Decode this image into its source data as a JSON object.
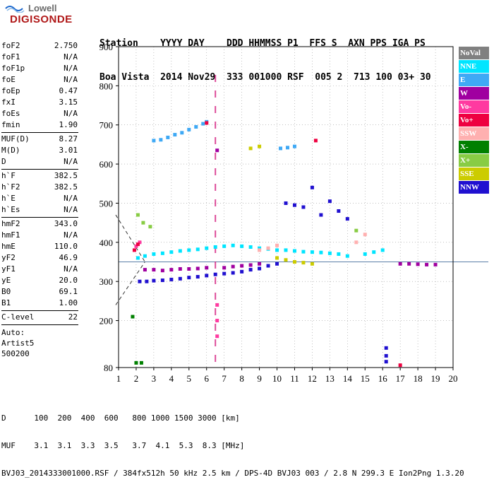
{
  "logo": {
    "line1": "Lowell",
    "line2": "DIGISONDE"
  },
  "header": {
    "labels": "Station    YYYY DAY    DDD HHMMSS P1  FFS S  AXN PPS IGA PS",
    "values": "Boa Vista  2014 Nov29  333 001000 RSF  005 2  713 100 03+ 30"
  },
  "parameters": [
    {
      "name": "foF2",
      "value": "2.750"
    },
    {
      "name": "foF1",
      "value": "N/A"
    },
    {
      "name": "foF1p",
      "value": "N/A"
    },
    {
      "name": "foE",
      "value": "N/A"
    },
    {
      "name": "foEp",
      "value": "0.47"
    },
    {
      "name": "fxI",
      "value": "3.15"
    },
    {
      "name": "foEs",
      "value": "N/A"
    },
    {
      "name": "fmin",
      "value": "1.90"
    },
    {
      "name": "MUF(D)",
      "value": "8.27"
    },
    {
      "name": "M(D)",
      "value": "3.01"
    },
    {
      "name": "D",
      "value": "N/A"
    },
    {
      "name": "h`F",
      "value": "382.5"
    },
    {
      "name": "h`F2",
      "value": "382.5"
    },
    {
      "name": "h`E",
      "value": "N/A"
    },
    {
      "name": "h`Es",
      "value": "N/A"
    },
    {
      "name": "hmF2",
      "value": "343.0"
    },
    {
      "name": "hmF1",
      "value": "N/A"
    },
    {
      "name": "hmE",
      "value": "110.0"
    },
    {
      "name": "yF2",
      "value": "46.9"
    },
    {
      "name": "yF1",
      "value": "N/A"
    },
    {
      "name": "yE",
      "value": "20.0"
    },
    {
      "name": "B0",
      "value": "69.1"
    },
    {
      "name": "B1",
      "value": "1.00"
    },
    {
      "name": "C-level",
      "value": "22"
    }
  ],
  "autoscaling": {
    "line1": "Auto:",
    "line2": "Artist5",
    "line3": "500200"
  },
  "legend": [
    {
      "label": "NoVal",
      "color": "#808080"
    },
    {
      "label": "NNE",
      "color": "#00e5ff"
    },
    {
      "label": "E",
      "color": "#3fa9f5"
    },
    {
      "label": "W",
      "color": "#a000a0"
    },
    {
      "label": "Vo-",
      "color": "#ff3aa0"
    },
    {
      "label": "Vo+",
      "color": "#ee0040"
    },
    {
      "label": "SSW",
      "color": "#ffb0b0"
    },
    {
      "label": "X-",
      "color": "#008000"
    },
    {
      "label": "X+",
      "color": "#88cc44"
    },
    {
      "label": "SSE",
      "color": "#cccc00"
    },
    {
      "label": "NNW",
      "color": "#2010d0"
    }
  ],
  "chart_data": {
    "type": "scatter",
    "title": "",
    "xlabel": "",
    "ylabel": "",
    "xlim": [
      1,
      20
    ],
    "ylim": [
      80,
      900
    ],
    "x_ticks": [
      "1",
      "2",
      "3",
      "4",
      "5",
      "6",
      "7",
      "8",
      "9",
      "10",
      "11",
      "12",
      "13",
      "14",
      "15",
      "16",
      "17",
      "18",
      "19",
      "20"
    ],
    "y_ticks": [
      "80",
      "200",
      "300",
      "400",
      "500",
      "600",
      "700",
      "800",
      "900"
    ],
    "grid": true,
    "reference_lines": {
      "frequency_dashed": 6.5,
      "height_line": 350
    },
    "series": [
      {
        "name": "NNW",
        "x": [
          2.2,
          2.6,
          3.0,
          3.5,
          4.0,
          4.5,
          5.0,
          5.5,
          6.0,
          6.5,
          7.0,
          7.5,
          8.0,
          8.5,
          9.0,
          9.5,
          10.0,
          10.5,
          11.0,
          11.5,
          12.0,
          12.5,
          13.0,
          13.5,
          14.0,
          16.2,
          16.2,
          16.2
        ],
        "y": [
          300,
          300,
          302,
          303,
          305,
          307,
          310,
          312,
          315,
          318,
          320,
          322,
          325,
          330,
          333,
          340,
          345,
          500,
          495,
          490,
          540,
          470,
          505,
          480,
          460,
          130,
          110,
          95
        ]
      },
      {
        "name": "NNE",
        "x": [
          2.1,
          2.5,
          3.0,
          3.5,
          4.0,
          4.5,
          5.0,
          5.5,
          6.0,
          6.5,
          7.0,
          7.5,
          8.0,
          8.5,
          9.0,
          9.5,
          10.0,
          10.5,
          11.0,
          11.5,
          12.0,
          12.5,
          13.0,
          13.5,
          14.0,
          15.0,
          15.5,
          16.0
        ],
        "y": [
          360,
          365,
          370,
          372,
          375,
          378,
          380,
          382,
          385,
          388,
          390,
          392,
          390,
          388,
          385,
          383,
          380,
          380,
          378,
          376,
          375,
          374,
          372,
          370,
          365,
          370,
          375,
          380
        ]
      },
      {
        "name": "E",
        "x": [
          3.0,
          3.4,
          3.8,
          4.2,
          4.6,
          5.0,
          5.4,
          5.8,
          6.0,
          10.2,
          10.6,
          11.0
        ],
        "y": [
          660,
          662,
          668,
          675,
          680,
          688,
          695,
          703,
          708,
          640,
          642,
          645
        ]
      },
      {
        "name": "W",
        "x": [
          2.5,
          3.0,
          3.5,
          4.0,
          4.5,
          5.0,
          5.5,
          6.0,
          6.6,
          7.0,
          7.5,
          8.0,
          8.5,
          9.0,
          17.0,
          17.5,
          18.0,
          18.5,
          19.0
        ],
        "y": [
          330,
          330,
          328,
          330,
          332,
          332,
          333,
          335,
          635,
          335,
          338,
          340,
          342,
          345,
          345,
          345,
          344,
          343,
          343
        ]
      },
      {
        "name": "Vo-",
        "x": [
          2.0,
          2.2,
          6.6,
          6.6,
          6.6
        ],
        "y": [
          390,
          400,
          240,
          200,
          160
        ]
      },
      {
        "name": "Vo+",
        "x": [
          1.9,
          2.1,
          6.0,
          12.2,
          17.0
        ],
        "y": [
          380,
          395,
          705,
          660,
          86
        ]
      },
      {
        "name": "SSW",
        "x": [
          9.0,
          9.5,
          10.0,
          14.5,
          15.0
        ],
        "y": [
          380,
          385,
          392,
          400,
          420
        ]
      },
      {
        "name": "X-",
        "x": [
          1.8,
          2.0,
          2.3
        ],
        "y": [
          210,
          92,
          92
        ]
      },
      {
        "name": "X+",
        "x": [
          2.1,
          2.4,
          2.8,
          14.5
        ],
        "y": [
          470,
          450,
          440,
          430
        ]
      },
      {
        "name": "SSE",
        "x": [
          8.5,
          9.0,
          10.0,
          10.5,
          11.0,
          11.5,
          12.0
        ],
        "y": [
          640,
          645,
          360,
          355,
          350,
          348,
          345
        ]
      }
    ]
  },
  "footer": {
    "line1": "D      100  200  400  600   800 1000 1500 3000 [km]",
    "line2": "MUF    3.1  3.1  3.3  3.5   3.7  4.1  5.3  8.3 [MHz]",
    "line3": "BVJ03_2014333001000.RSF / 384fx512h 50 kHz 2.5 km / DPS-4D BVJ03 003 / 2.8 N 299.3 E Ion2Png 1.3.20"
  }
}
